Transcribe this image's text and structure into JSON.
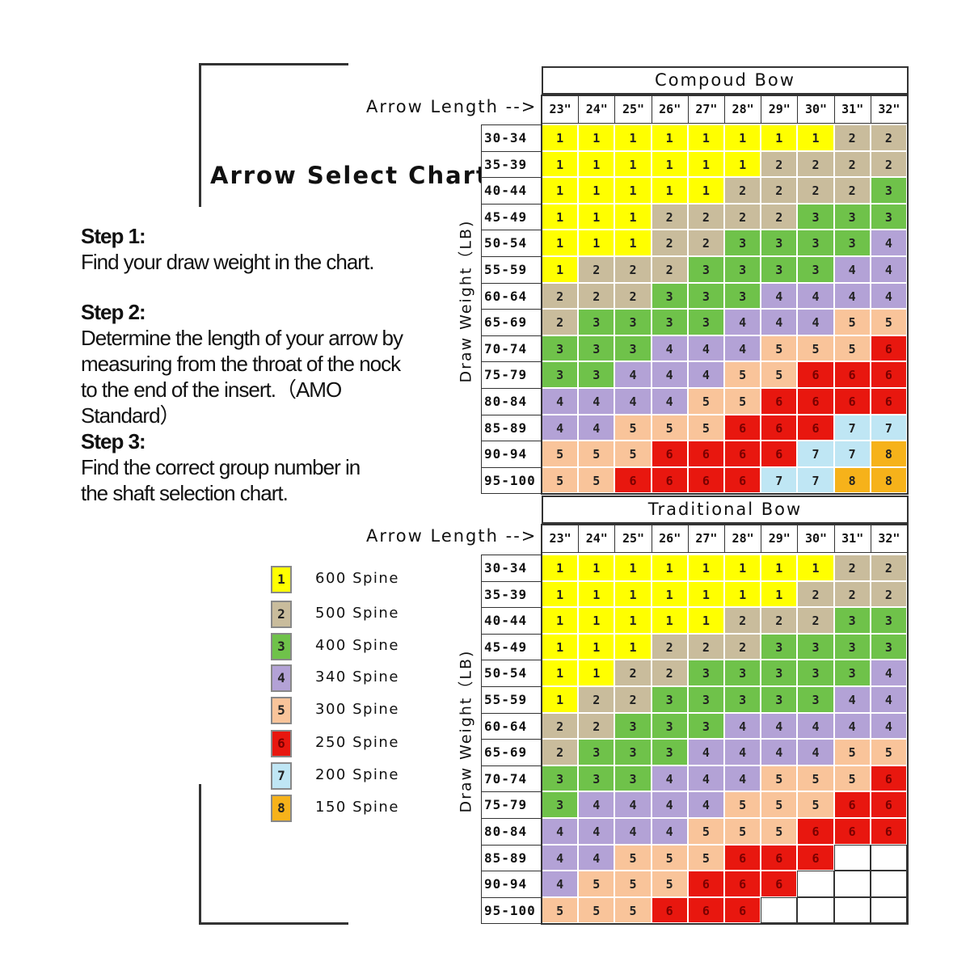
{
  "title": "Arrow Select Chart",
  "steps": [
    {
      "heading": "Step 1:",
      "text": "Find your draw weight in the chart."
    },
    {
      "heading": "Step 2:",
      "text": "Determine the length of your arrow by measuring from the throat of the nock to the end of the insert.（AMO Standard）"
    },
    {
      "heading": "Step 3:",
      "text": "Find the correct group number in the shaft selection chart."
    }
  ],
  "legend": [
    {
      "group": "1",
      "label": "600 Spine",
      "color": "#ffff00"
    },
    {
      "group": "2",
      "label": "500 Spine",
      "color": "#c9bc9c"
    },
    {
      "group": "3",
      "label": "400 Spine",
      "color": "#6fc24a"
    },
    {
      "group": "4",
      "label": "340 Spine",
      "color": "#b3a2d6"
    },
    {
      "group": "5",
      "label": "300 Spine",
      "color": "#f9c49a"
    },
    {
      "group": "6",
      "label": "250 Spine",
      "color": "#e8170f"
    },
    {
      "group": "7",
      "label": "200 Spine",
      "color": "#bfe6f4"
    },
    {
      "group": "8",
      "label": "150 Spine",
      "color": "#f6b21a"
    }
  ],
  "chart_data": [
    {
      "type": "table",
      "title": "Compoud Bow",
      "xlabel": "Arrow Length -->",
      "ylabel": "Draw Weight（LB)",
      "columns": [
        "23\"",
        "24\"",
        "25\"",
        "26\"",
        "27\"",
        "28\"",
        "29\"",
        "30\"",
        "31\"",
        "32\""
      ],
      "rows": [
        "30-34",
        "35-39",
        "40-44",
        "45-49",
        "50-54",
        "55-59",
        "60-64",
        "65-69",
        "70-74",
        "75-79",
        "80-84",
        "85-89",
        "90-94",
        "95-100"
      ],
      "values": [
        [
          1,
          1,
          1,
          1,
          1,
          1,
          1,
          1,
          2,
          2
        ],
        [
          1,
          1,
          1,
          1,
          1,
          1,
          2,
          2,
          2,
          2
        ],
        [
          1,
          1,
          1,
          1,
          1,
          2,
          2,
          2,
          2,
          3
        ],
        [
          1,
          1,
          1,
          2,
          2,
          2,
          2,
          3,
          3,
          3
        ],
        [
          1,
          1,
          1,
          2,
          2,
          3,
          3,
          3,
          3,
          4
        ],
        [
          1,
          2,
          2,
          2,
          3,
          3,
          3,
          3,
          4,
          4
        ],
        [
          2,
          2,
          2,
          3,
          3,
          3,
          4,
          4,
          4,
          4
        ],
        [
          2,
          3,
          3,
          3,
          3,
          4,
          4,
          4,
          5,
          5
        ],
        [
          3,
          3,
          3,
          4,
          4,
          4,
          5,
          5,
          5,
          6
        ],
        [
          3,
          3,
          4,
          4,
          4,
          5,
          5,
          6,
          6,
          6
        ],
        [
          4,
          4,
          4,
          4,
          5,
          5,
          6,
          6,
          6,
          6
        ],
        [
          4,
          4,
          5,
          5,
          5,
          6,
          6,
          6,
          7,
          7
        ],
        [
          5,
          5,
          5,
          6,
          6,
          6,
          6,
          7,
          7,
          8
        ],
        [
          5,
          5,
          6,
          6,
          6,
          6,
          7,
          7,
          8,
          8
        ]
      ]
    },
    {
      "type": "table",
      "title": "Traditional Bow",
      "xlabel": "Arrow Length -->",
      "ylabel": "Draw Weight（LB)",
      "columns": [
        "23\"",
        "24\"",
        "25\"",
        "26\"",
        "27\"",
        "28\"",
        "29\"",
        "30\"",
        "31\"",
        "32\""
      ],
      "rows": [
        "30-34",
        "35-39",
        "40-44",
        "45-49",
        "50-54",
        "55-59",
        "60-64",
        "65-69",
        "70-74",
        "75-79",
        "80-84",
        "85-89",
        "90-94",
        "95-100"
      ],
      "values": [
        [
          1,
          1,
          1,
          1,
          1,
          1,
          1,
          1,
          2,
          2
        ],
        [
          1,
          1,
          1,
          1,
          1,
          1,
          1,
          2,
          2,
          2
        ],
        [
          1,
          1,
          1,
          1,
          1,
          2,
          2,
          2,
          3,
          3
        ],
        [
          1,
          1,
          1,
          2,
          2,
          2,
          3,
          3,
          3,
          3
        ],
        [
          1,
          1,
          2,
          2,
          3,
          3,
          3,
          3,
          3,
          4
        ],
        [
          1,
          2,
          2,
          3,
          3,
          3,
          3,
          3,
          4,
          4
        ],
        [
          2,
          2,
          3,
          3,
          3,
          4,
          4,
          4,
          4,
          4
        ],
        [
          2,
          3,
          3,
          3,
          4,
          4,
          4,
          4,
          5,
          5
        ],
        [
          3,
          3,
          3,
          4,
          4,
          4,
          5,
          5,
          5,
          6
        ],
        [
          3,
          4,
          4,
          4,
          4,
          5,
          5,
          5,
          6,
          6
        ],
        [
          4,
          4,
          4,
          4,
          5,
          5,
          5,
          6,
          6,
          6
        ],
        [
          4,
          4,
          5,
          5,
          5,
          6,
          6,
          6,
          null,
          null
        ],
        [
          4,
          5,
          5,
          5,
          6,
          6,
          6,
          null,
          null,
          null
        ],
        [
          5,
          5,
          5,
          6,
          6,
          6,
          null,
          null,
          null,
          null
        ]
      ]
    }
  ]
}
